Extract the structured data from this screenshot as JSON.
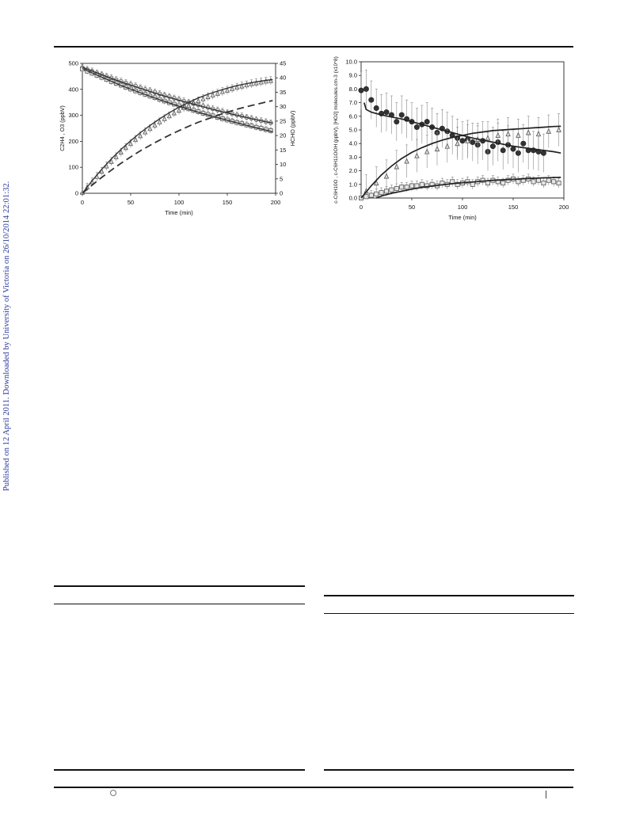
{
  "side_note": "Published on 12 April 2011. Downloaded by University of Victoria on 26/10/2014 22:01:32.",
  "chart_data": [
    {
      "type": "scatter",
      "xlabel": "Time (min)",
      "ylabel": "C2H4 , O3 (ppbV)",
      "y2label": "HCHO (ppbV)",
      "xlim": [
        0,
        200
      ],
      "ylim": [
        0,
        500
      ],
      "y2lim": [
        0,
        45
      ],
      "xticks": [
        0,
        50,
        100,
        150,
        200
      ],
      "yticks": [
        0,
        100,
        200,
        300,
        400,
        500
      ],
      "y2ticks": [
        0,
        5,
        10,
        15,
        20,
        25,
        30,
        35,
        40,
        45
      ],
      "series": [
        {
          "marker": "circle",
          "axis": "left",
          "x": [
            0,
            5,
            10,
            15,
            20,
            25,
            30,
            35,
            40,
            45,
            50,
            55,
            60,
            65,
            70,
            75,
            80,
            85,
            90,
            95,
            100,
            105,
            110,
            115,
            120,
            125,
            130,
            135,
            140,
            145,
            150,
            155,
            160,
            165,
            170,
            175,
            180,
            185,
            190,
            195
          ],
          "values": [
            484,
            477,
            470,
            463,
            457,
            450,
            444,
            437,
            431,
            425,
            419,
            413,
            406,
            400,
            395,
            389,
            383,
            377,
            372,
            366,
            361,
            355,
            350,
            345,
            340,
            335,
            330,
            325,
            320,
            315,
            310,
            306,
            301,
            297,
            292,
            288,
            283,
            279,
            275,
            271
          ]
        },
        {
          "marker": "square",
          "axis": "left",
          "x": [
            0,
            5,
            10,
            15,
            20,
            25,
            30,
            35,
            40,
            45,
            50,
            55,
            60,
            65,
            70,
            75,
            80,
            85,
            90,
            95,
            100,
            105,
            110,
            115,
            120,
            125,
            130,
            135,
            140,
            145,
            150,
            155,
            160,
            165,
            170,
            175,
            180,
            185,
            190,
            195
          ],
          "values": [
            478,
            470,
            462,
            454,
            446,
            438,
            430,
            423,
            416,
            408,
            401,
            394,
            387,
            381,
            374,
            368,
            361,
            355,
            349,
            343,
            337,
            331,
            325,
            319,
            314,
            308,
            303,
            298,
            292,
            287,
            282,
            277,
            272,
            268,
            263,
            259,
            254,
            250,
            245,
            241
          ]
        },
        {
          "marker": "triangle",
          "axis": "right",
          "x": [
            0,
            5,
            10,
            15,
            20,
            25,
            30,
            35,
            40,
            45,
            50,
            55,
            60,
            65,
            70,
            75,
            80,
            85,
            90,
            95,
            100,
            105,
            110,
            115,
            120,
            125,
            130,
            135,
            140,
            145,
            150,
            155,
            160,
            165,
            170,
            175,
            180,
            185,
            190,
            195
          ],
          "values": [
            0.3,
            2.1,
            3.9,
            5.8,
            7.6,
            9.4,
            11.0,
            12.6,
            14.2,
            15.8,
            17.2,
            18.6,
            19.9,
            21.2,
            22.4,
            23.6,
            24.7,
            25.8,
            26.8,
            27.8,
            28.7,
            29.6,
            30.4,
            31.2,
            32.0,
            32.7,
            33.4,
            34.0,
            34.6,
            35.2,
            35.7,
            36.2,
            36.7,
            37.1,
            37.5,
            37.9,
            38.2,
            38.5,
            38.8,
            39.0
          ]
        }
      ],
      "model_curves": [
        {
          "style": "solid",
          "axis": "right",
          "x": [
            0,
            10,
            20,
            30,
            40,
            50,
            60,
            70,
            80,
            90,
            100,
            110,
            120,
            130,
            140,
            150,
            160,
            170,
            180,
            190,
            197
          ],
          "values": [
            0,
            4.3,
            8.3,
            11.9,
            15.2,
            18.2,
            21.0,
            23.5,
            25.8,
            27.9,
            29.8,
            31.5,
            33.0,
            34.3,
            35.4,
            36.4,
            37.3,
            38.0,
            38.6,
            39.1,
            39.4
          ]
        },
        {
          "style": "dashed",
          "axis": "right",
          "x": [
            0,
            10,
            20,
            30,
            40,
            50,
            60,
            70,
            80,
            90,
            100,
            110,
            120,
            130,
            140,
            150,
            160,
            170,
            180,
            190,
            197
          ],
          "values": [
            0,
            2.8,
            5.5,
            8.0,
            10.4,
            12.6,
            14.7,
            16.6,
            18.4,
            20.1,
            21.7,
            23.2,
            24.6,
            25.8,
            27.0,
            28.1,
            29.1,
            30.0,
            30.8,
            31.6,
            32.1
          ]
        },
        {
          "style": "solid",
          "axis": "left",
          "x": [
            0,
            20,
            40,
            60,
            80,
            100,
            120,
            140,
            160,
            180,
            197
          ],
          "values": [
            485,
            456,
            429,
            404,
            380,
            358,
            338,
            318,
            300,
            283,
            270
          ]
        },
        {
          "style": "solid",
          "axis": "left",
          "x": [
            0,
            20,
            40,
            60,
            80,
            100,
            120,
            140,
            160,
            180,
            197
          ],
          "values": [
            480,
            447,
            415,
            387,
            360,
            335,
            312,
            291,
            271,
            252,
            237
          ]
        }
      ]
    },
    {
      "type": "scatter",
      "xlabel": "Time (min)",
      "ylabel": "c-C6H10O , c-C6H11OOH (ppbV), [HO2] molecules.cm-3 (x10^8)",
      "xlim": [
        0,
        200
      ],
      "ylim": [
        0,
        10
      ],
      "xticks": [
        0,
        50,
        100,
        150,
        200
      ],
      "yticks": [
        "0.0",
        "1.0",
        "2.0",
        "3.0",
        "4.0",
        "5.0",
        "6.0",
        "7.0",
        "8.0",
        "9.0",
        "10.0"
      ],
      "series": [
        {
          "marker": "filled-circle",
          "x": [
            0,
            5,
            10,
            15,
            20,
            25,
            30,
            35,
            40,
            45,
            50,
            55,
            60,
            65,
            70,
            75,
            80,
            85,
            90,
            95,
            100,
            105,
            110,
            115,
            120,
            125,
            130,
            135,
            140,
            145,
            150,
            155,
            160,
            165,
            170,
            175,
            180
          ],
          "values": [
            7.9,
            8.0,
            7.2,
            6.6,
            6.2,
            6.3,
            6.1,
            5.6,
            6.1,
            5.8,
            5.6,
            5.2,
            5.4,
            5.6,
            5.2,
            4.8,
            5.1,
            4.9,
            4.6,
            4.4,
            4.2,
            4.3,
            4.1,
            3.9,
            4.2,
            3.4,
            3.8,
            4.1,
            3.5,
            3.9,
            3.6,
            3.3,
            4.0,
            3.5,
            3.5,
            3.4,
            3.3
          ]
        },
        {
          "marker": "triangle",
          "x": [
            5,
            15,
            25,
            35,
            45,
            55,
            65,
            75,
            85,
            95,
            105,
            115,
            125,
            135,
            145,
            155,
            165,
            175,
            185,
            195
          ],
          "values": [
            0.5,
            1.1,
            1.6,
            2.3,
            2.7,
            3.1,
            3.4,
            3.6,
            3.8,
            4.0,
            4.2,
            4.3,
            4.4,
            4.6,
            4.7,
            4.6,
            4.8,
            4.7,
            4.9,
            5.0
          ]
        },
        {
          "marker": "square",
          "x": [
            0,
            5,
            10,
            15,
            20,
            25,
            30,
            35,
            40,
            45,
            50,
            55,
            60,
            65,
            70,
            75,
            80,
            85,
            90,
            95,
            100,
            105,
            110,
            115,
            120,
            125,
            130,
            135,
            140,
            145,
            150,
            155,
            160,
            165,
            170,
            175,
            180,
            185,
            190,
            195
          ],
          "values": [
            0.0,
            0.1,
            0.2,
            0.3,
            0.4,
            0.5,
            0.6,
            0.7,
            0.8,
            0.8,
            0.9,
            0.9,
            1.0,
            0.9,
            1.0,
            0.9,
            1.1,
            1.0,
            1.2,
            1.0,
            1.1,
            1.2,
            1.0,
            1.2,
            1.3,
            1.1,
            1.3,
            1.2,
            1.1,
            1.3,
            1.4,
            1.2,
            1.3,
            1.4,
            1.2,
            1.3,
            1.1,
            1.3,
            1.2,
            1.1
          ]
        }
      ],
      "model_curves": [
        {
          "style": "solid",
          "x": [
            3,
            5,
            10,
            20,
            30,
            40,
            50,
            60,
            70,
            80,
            90,
            100,
            110,
            120,
            130,
            140,
            150,
            160,
            170,
            180,
            190,
            197
          ],
          "values": [
            7.0,
            6.5,
            6.3,
            6.1,
            5.95,
            5.8,
            5.6,
            5.4,
            5.2,
            5.0,
            4.8,
            4.6,
            4.4,
            4.25,
            4.1,
            3.95,
            3.8,
            3.7,
            3.6,
            3.5,
            3.4,
            3.3
          ]
        },
        {
          "style": "solid",
          "x": [
            0,
            10,
            20,
            30,
            40,
            50,
            60,
            70,
            80,
            90,
            100,
            110,
            120,
            130,
            140,
            150,
            160,
            170,
            180,
            190,
            197
          ],
          "values": [
            0,
            0.9,
            1.7,
            2.35,
            2.9,
            3.35,
            3.7,
            4.0,
            4.25,
            4.45,
            4.6,
            4.75,
            4.85,
            4.95,
            5.0,
            5.05,
            5.1,
            5.15,
            5.2,
            5.25,
            5.27
          ]
        },
        {
          "style": "solid",
          "x": [
            15,
            20,
            30,
            40,
            50,
            60,
            70,
            80,
            90,
            100,
            110,
            120,
            130,
            140,
            150,
            160,
            170,
            180,
            190,
            197
          ],
          "values": [
            0,
            0.15,
            0.35,
            0.5,
            0.65,
            0.78,
            0.88,
            0.97,
            1.05,
            1.12,
            1.18,
            1.24,
            1.3,
            1.34,
            1.38,
            1.42,
            1.45,
            1.48,
            1.5,
            1.52
          ]
        }
      ]
    }
  ]
}
